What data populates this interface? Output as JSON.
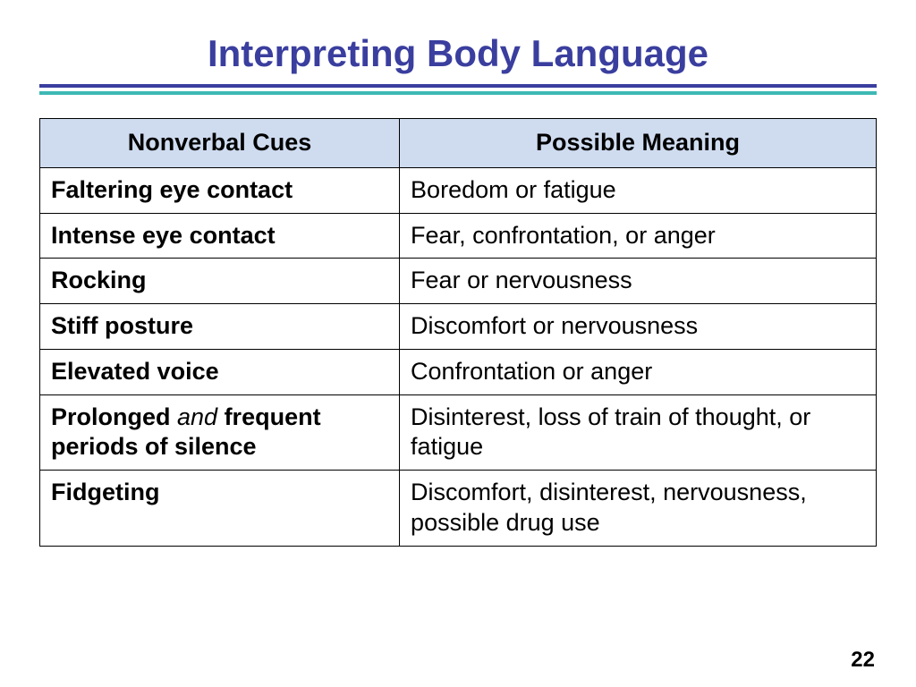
{
  "title": "Interpreting Body Language",
  "title_color": "#3a3e9e",
  "rule1_color": "#3a3e9e",
  "rule2_color": "#3db8b4",
  "header_bg": "#cfdcf0",
  "columns": [
    "Nonverbal Cues",
    "Possible Meaning"
  ],
  "rows": [
    {
      "cue_bold": "Faltering eye contact",
      "cue_italic": "",
      "cue_bold2": "",
      "meaning": "Boredom or fatigue"
    },
    {
      "cue_bold": "Intense eye contact",
      "cue_italic": "",
      "cue_bold2": "",
      "meaning": "Fear, confrontation, or anger"
    },
    {
      "cue_bold": "Rocking",
      "cue_italic": "",
      "cue_bold2": "",
      "meaning": "Fear or nervousness"
    },
    {
      "cue_bold": "Stiff posture",
      "cue_italic": "",
      "cue_bold2": "",
      "meaning": "Discomfort or nervousness"
    },
    {
      "cue_bold": "Elevated voice",
      "cue_italic": "",
      "cue_bold2": "",
      "meaning": "Confrontation or anger"
    },
    {
      "cue_bold": "Prolonged ",
      "cue_italic": "and",
      "cue_bold2": " frequent periods of silence",
      "meaning": "Disinterest, loss of train of thought, or fatigue"
    },
    {
      "cue_bold": "Fidgeting",
      "cue_italic": "",
      "cue_bold2": "",
      "meaning": "Discomfort, disinterest, nervousness, possible drug use"
    }
  ],
  "page_number": "22"
}
